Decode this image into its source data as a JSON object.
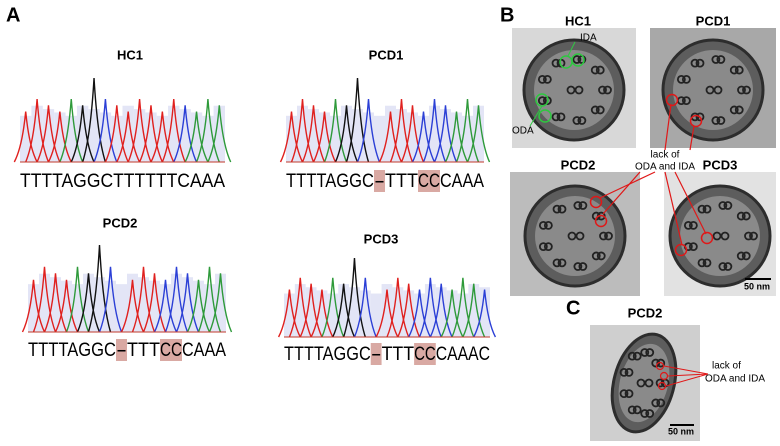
{
  "panel_a": {
    "label": "A",
    "traces": [
      {
        "title": "HC1",
        "sequence": [
          {
            "text": "TTTTAGGCTTTTTTCAAA"
          }
        ]
      },
      {
        "title": "PCD1",
        "sequence": [
          {
            "text": "TTTTAGGC"
          },
          {
            "text": "-",
            "highlight": true
          },
          {
            "text": "TTT"
          },
          {
            "text": "CC",
            "highlight": true
          },
          {
            "text": "CAAA"
          }
        ]
      },
      {
        "title": "PCD2",
        "sequence": [
          {
            "text": "TTTTAGGC"
          },
          {
            "text": "-",
            "highlight": true
          },
          {
            "text": "TTT"
          },
          {
            "text": "CC",
            "highlight": true
          },
          {
            "text": "CAAA"
          }
        ]
      },
      {
        "title": "PCD3",
        "sequence": [
          {
            "text": "TTTTAGGC"
          },
          {
            "text": "-",
            "highlight": true
          },
          {
            "text": "TTT"
          },
          {
            "text": "CC",
            "highlight": true
          },
          {
            "text": "CAAAC"
          }
        ]
      }
    ]
  },
  "panel_b": {
    "label": "B",
    "images": [
      {
        "title": "HC1",
        "labels": [
          "IDA",
          "ODA"
        ]
      },
      {
        "title": "PCD1"
      },
      {
        "title": "PCD2"
      },
      {
        "title": "PCD3"
      }
    ],
    "annotation": [
      "lack of",
      "ODA and IDA"
    ],
    "scale_bar": "50 nm"
  },
  "panel_c": {
    "label": "C",
    "title": "PCD2",
    "annotation": [
      "lack of",
      "ODA and IDA"
    ],
    "scale_bar": "50 nm"
  }
}
